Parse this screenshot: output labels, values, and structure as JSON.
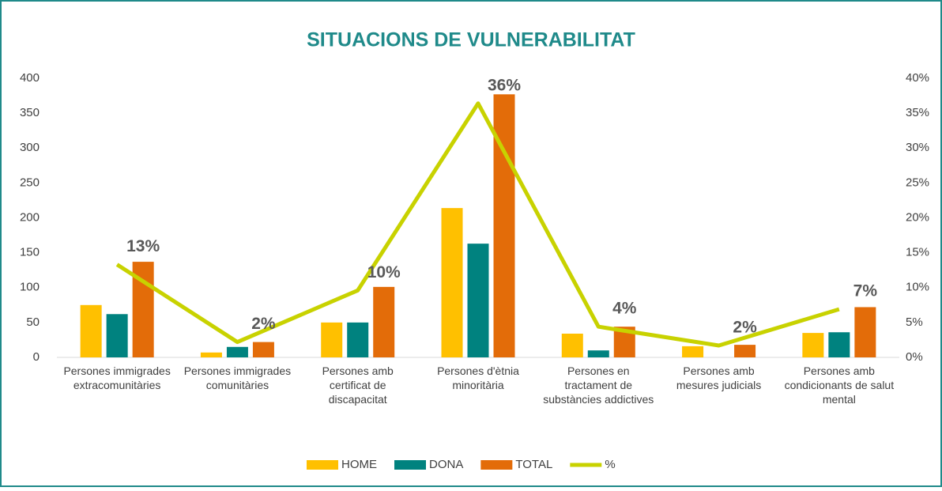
{
  "chart_data": {
    "type": "bar",
    "title": "SITUACIONS DE VULNERABILITAT",
    "categories": [
      "Persones immigrades extracomunitàries",
      "Persones immigrades comunitàries",
      "Persones amb certificat de discapacitat",
      "Persones d'ètnia minoritària",
      "Persones en tractament de substàncies addictives",
      "Persones amb mesures judicials",
      "Persones amb condicionants de salut mental"
    ],
    "series": [
      {
        "name": "HOME",
        "color": "#ffc000",
        "values": [
          75,
          7,
          50,
          214,
          34,
          16,
          35
        ]
      },
      {
        "name": "DONA",
        "color": "#00827f",
        "values": [
          62,
          15,
          50,
          163,
          10,
          0,
          36
        ]
      },
      {
        "name": "TOTAL",
        "color": "#e36c09",
        "values": [
          137,
          22,
          101,
          377,
          44,
          18,
          72
        ]
      },
      {
        "name": "%",
        "color": "#c8d200",
        "type": "line",
        "axis": "y2",
        "values": [
          13.3,
          2.2,
          9.6,
          36.4,
          4.4,
          1.7,
          6.9
        ],
        "value_labels": [
          "13%",
          "2%",
          "10%",
          "36%",
          "4%",
          "2%",
          "7%"
        ]
      }
    ],
    "ylim": [
      0,
      400
    ],
    "yticks": [
      0,
      50,
      100,
      150,
      200,
      250,
      300,
      350,
      400
    ],
    "y2lim": [
      0,
      40
    ],
    "y2ticks": [
      {
        "value": 0,
        "label": "0%"
      },
      {
        "value": 5,
        "label": "5%"
      },
      {
        "value": 10,
        "label": "10%"
      },
      {
        "value": 15,
        "label": "15%"
      },
      {
        "value": 20,
        "label": "20%"
      },
      {
        "value": 25,
        "label": "25%"
      },
      {
        "value": 30,
        "label": "30%"
      },
      {
        "value": 35,
        "label": "35%"
      },
      {
        "value": 40,
        "label": "40%"
      }
    ],
    "legend": "bottom"
  }
}
